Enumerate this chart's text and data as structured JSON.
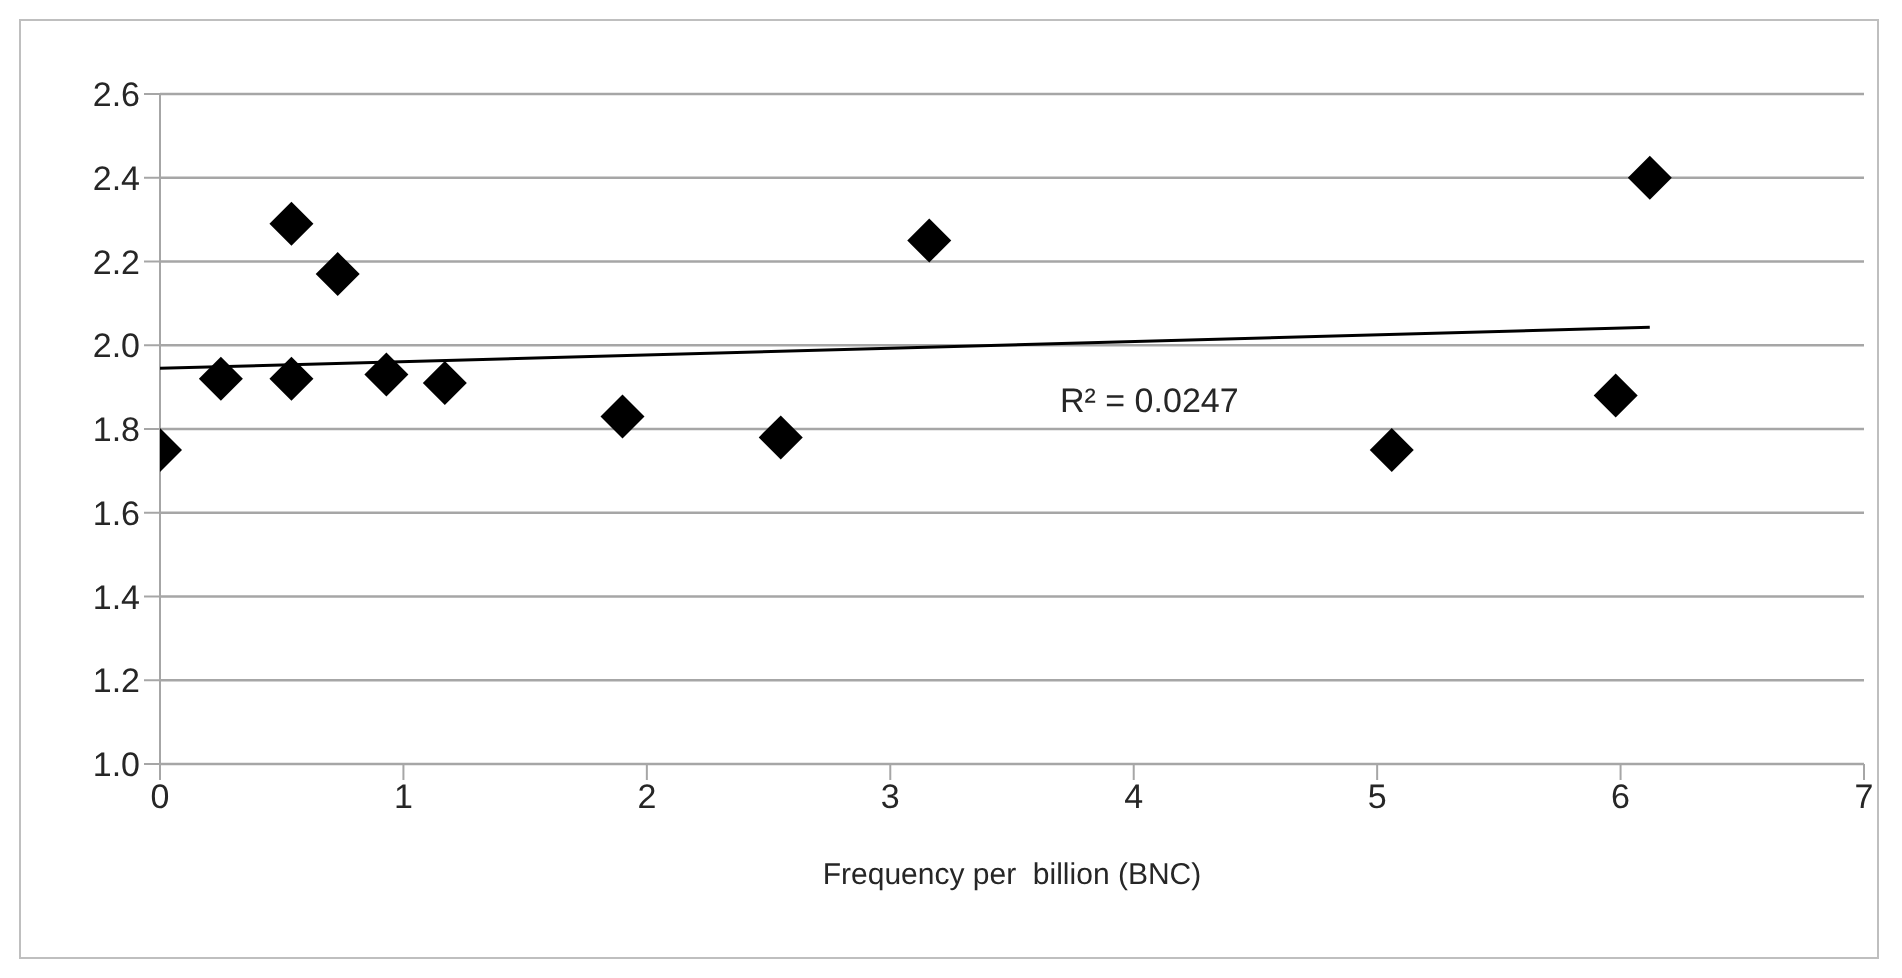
{
  "chart_data": {
    "type": "scatter",
    "xlabel": "Frequency per  billion (BNC)",
    "xlim": [
      0,
      7
    ],
    "xticks": [
      0,
      1,
      2,
      3,
      4,
      5,
      6,
      7
    ],
    "ylim": [
      1.0,
      2.6
    ],
    "yticks": [
      {
        "value": 1.0,
        "label": "1.0"
      },
      {
        "value": 1.2,
        "label": "1.2"
      },
      {
        "value": 1.4,
        "label": "1.4"
      },
      {
        "value": 1.6,
        "label": "1.6"
      },
      {
        "value": 1.8,
        "label": "1.8"
      },
      {
        "value": 2.0,
        "label": "2.0"
      },
      {
        "value": 2.2,
        "label": "2.2"
      },
      {
        "value": 2.4,
        "label": "2.4"
      },
      {
        "value": 2.6,
        "label": "2.6"
      }
    ],
    "grid": "y",
    "marker": "diamond",
    "series": [
      {
        "color": "#000000",
        "x": [
          0,
          0.25,
          0.54,
          0.54,
          0.73,
          0.93,
          1.17,
          1.9,
          2.55,
          3.16,
          5.06,
          5.98,
          6.12
        ],
        "values": [
          1.75,
          1.92,
          2.29,
          1.92,
          2.17,
          1.93,
          1.91,
          1.83,
          1.78,
          2.25,
          1.75,
          1.88,
          2.4
        ]
      },
      {
        "type": "line",
        "color": "#000000",
        "marker": "none",
        "x": [
          0,
          6.12
        ],
        "values": [
          1.945,
          2.043
        ]
      }
    ],
    "annotations": [
      "R² = 0.0247"
    ]
  }
}
